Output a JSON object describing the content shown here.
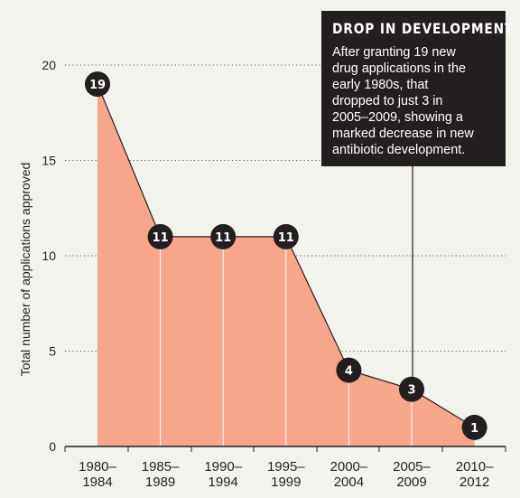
{
  "chart_data": {
    "type": "area",
    "categories": [
      "1980–\n1984",
      "1985–\n1989",
      "1990–\n1994",
      "1995–\n1999",
      "2000–\n2004",
      "2005–\n2009",
      "2010–\n2012"
    ],
    "values": [
      19,
      11,
      11,
      11,
      4,
      3,
      1
    ],
    "data_labels": [
      "19",
      "11",
      "11",
      "11",
      "4",
      "3",
      "1"
    ],
    "xlabel": "",
    "ylabel": "Total number of applications approved",
    "ylim": [
      0,
      20
    ],
    "yticks": [
      "0",
      "5",
      "10",
      "15",
      "20"
    ],
    "grid": "horizontal dotted",
    "colors": {
      "fill": "#f7a58b",
      "line": "#231f20",
      "marker": "#231f20",
      "marker_text": "#ffffff",
      "drop_line": "#ffffff",
      "background": "#f3f3ee"
    }
  },
  "annotation": {
    "title": "DROP IN DEVELOPMENT",
    "text_lines": [
      "After granting 19 new",
      "drug applications in the",
      "early 1980s, that",
      "dropped to just 3 in",
      "2005–2009, showing a",
      "marked decrease in new",
      "antibiotic development."
    ],
    "points_to_category_index": 5,
    "background": "#231f20"
  }
}
